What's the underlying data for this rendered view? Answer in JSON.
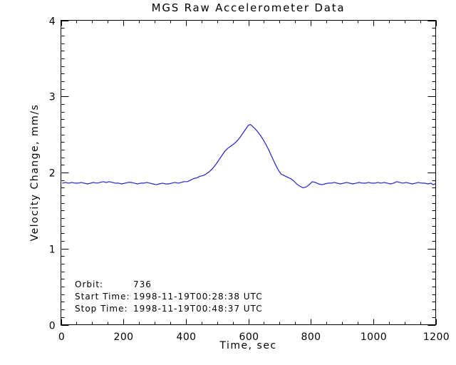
{
  "window": {
    "background": "#ffffff"
  },
  "chart_data": {
    "type": "line",
    "title": "MGS Raw Accelerometer Data",
    "xlabel": "Time, sec",
    "ylabel": "Velocity Change, mm/s",
    "xlim": [
      0,
      1200
    ],
    "ylim": [
      0,
      4
    ],
    "x_major_ticks": [
      0,
      200,
      400,
      600,
      800,
      1000,
      1200
    ],
    "x_minor_step": 50,
    "y_major_ticks": [
      0,
      1,
      2,
      3,
      4
    ],
    "y_minor_step": 0.1,
    "grid": false,
    "frame_box": true,
    "legend": "none",
    "axis_color": "#000000",
    "line_color": "#2222cc",
    "series": [
      {
        "name": "velocity-change",
        "points": [
          [
            5,
            1.86
          ],
          [
            15,
            1.87
          ],
          [
            25,
            1.86
          ],
          [
            35,
            1.87
          ],
          [
            45,
            1.86
          ],
          [
            55,
            1.86
          ],
          [
            65,
            1.87
          ],
          [
            75,
            1.86
          ],
          [
            85,
            1.85
          ],
          [
            95,
            1.86
          ],
          [
            105,
            1.87
          ],
          [
            115,
            1.86
          ],
          [
            125,
            1.87
          ],
          [
            135,
            1.88
          ],
          [
            145,
            1.87
          ],
          [
            155,
            1.88
          ],
          [
            165,
            1.87
          ],
          [
            175,
            1.86
          ],
          [
            185,
            1.86
          ],
          [
            195,
            1.85
          ],
          [
            205,
            1.86
          ],
          [
            215,
            1.87
          ],
          [
            225,
            1.87
          ],
          [
            235,
            1.86
          ],
          [
            245,
            1.85
          ],
          [
            255,
            1.86
          ],
          [
            265,
            1.86
          ],
          [
            275,
            1.87
          ],
          [
            285,
            1.86
          ],
          [
            295,
            1.85
          ],
          [
            305,
            1.84
          ],
          [
            315,
            1.85
          ],
          [
            325,
            1.86
          ],
          [
            335,
            1.85
          ],
          [
            345,
            1.85
          ],
          [
            355,
            1.86
          ],
          [
            365,
            1.87
          ],
          [
            375,
            1.86
          ],
          [
            385,
            1.87
          ],
          [
            395,
            1.88
          ],
          [
            405,
            1.88
          ],
          [
            415,
            1.9
          ],
          [
            425,
            1.92
          ],
          [
            435,
            1.93
          ],
          [
            445,
            1.95
          ],
          [
            455,
            1.96
          ],
          [
            465,
            1.98
          ],
          [
            475,
            2.01
          ],
          [
            485,
            2.05
          ],
          [
            495,
            2.1
          ],
          [
            505,
            2.16
          ],
          [
            515,
            2.22
          ],
          [
            525,
            2.28
          ],
          [
            535,
            2.32
          ],
          [
            545,
            2.35
          ],
          [
            555,
            2.38
          ],
          [
            565,
            2.42
          ],
          [
            575,
            2.47
          ],
          [
            585,
            2.53
          ],
          [
            595,
            2.59
          ],
          [
            600,
            2.62
          ],
          [
            605,
            2.63
          ],
          [
            610,
            2.62
          ],
          [
            615,
            2.6
          ],
          [
            625,
            2.56
          ],
          [
            635,
            2.51
          ],
          [
            645,
            2.45
          ],
          [
            655,
            2.38
          ],
          [
            665,
            2.3
          ],
          [
            675,
            2.21
          ],
          [
            685,
            2.12
          ],
          [
            695,
            2.04
          ],
          [
            705,
            1.98
          ],
          [
            715,
            1.96
          ],
          [
            725,
            1.94
          ],
          [
            735,
            1.92
          ],
          [
            745,
            1.89
          ],
          [
            755,
            1.85
          ],
          [
            765,
            1.82
          ],
          [
            775,
            1.8
          ],
          [
            785,
            1.81
          ],
          [
            795,
            1.84
          ],
          [
            805,
            1.88
          ],
          [
            815,
            1.87
          ],
          [
            825,
            1.85
          ],
          [
            835,
            1.84
          ],
          [
            845,
            1.85
          ],
          [
            855,
            1.86
          ],
          [
            865,
            1.86
          ],
          [
            875,
            1.87
          ],
          [
            885,
            1.86
          ],
          [
            895,
            1.85
          ],
          [
            905,
            1.86
          ],
          [
            915,
            1.87
          ],
          [
            925,
            1.86
          ],
          [
            935,
            1.85
          ],
          [
            945,
            1.86
          ],
          [
            955,
            1.87
          ],
          [
            965,
            1.86
          ],
          [
            975,
            1.86
          ],
          [
            985,
            1.87
          ],
          [
            995,
            1.86
          ],
          [
            1005,
            1.86
          ],
          [
            1015,
            1.87
          ],
          [
            1025,
            1.86
          ],
          [
            1035,
            1.87
          ],
          [
            1045,
            1.86
          ],
          [
            1055,
            1.85
          ],
          [
            1065,
            1.86
          ],
          [
            1075,
            1.88
          ],
          [
            1085,
            1.87
          ],
          [
            1095,
            1.86
          ],
          [
            1105,
            1.87
          ],
          [
            1115,
            1.86
          ],
          [
            1125,
            1.85
          ],
          [
            1135,
            1.86
          ],
          [
            1145,
            1.87
          ],
          [
            1155,
            1.86
          ],
          [
            1165,
            1.86
          ],
          [
            1175,
            1.85
          ],
          [
            1185,
            1.86
          ],
          [
            1192,
            1.84
          ],
          [
            1199,
            1.85
          ]
        ]
      }
    ],
    "annotations": [
      {
        "label": "Orbit:",
        "value": "736"
      },
      {
        "label": "Start Time:",
        "value": "1998-11-19T00:28:38 UTC"
      },
      {
        "label": "Stop Time:",
        "value": "1998-11-19T00:48:37 UTC"
      }
    ]
  }
}
